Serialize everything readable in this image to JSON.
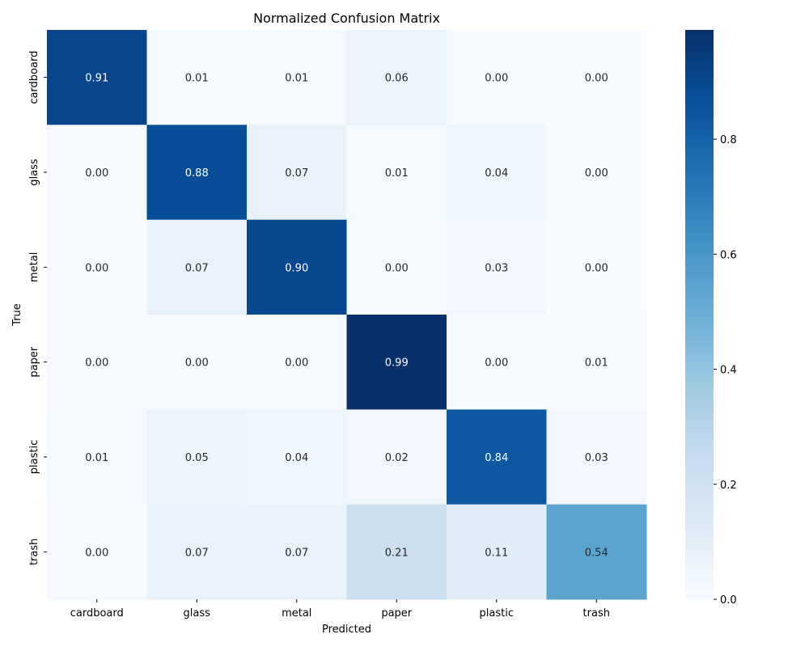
{
  "chart_data": {
    "type": "heatmap",
    "title": "Normalized Confusion Matrix",
    "xlabel": "Predicted",
    "ylabel": "True",
    "x_categories": [
      "cardboard",
      "glass",
      "metal",
      "paper",
      "plastic",
      "trash"
    ],
    "y_categories": [
      "cardboard",
      "glass",
      "metal",
      "paper",
      "plastic",
      "trash"
    ],
    "values": [
      [
        0.91,
        0.01,
        0.01,
        0.06,
        0.0,
        0.0
      ],
      [
        0.0,
        0.88,
        0.07,
        0.01,
        0.04,
        0.0
      ],
      [
        0.0,
        0.07,
        0.9,
        0.0,
        0.03,
        0.0
      ],
      [
        0.0,
        0.0,
        0.0,
        0.99,
        0.0,
        0.01
      ],
      [
        0.01,
        0.05,
        0.04,
        0.02,
        0.84,
        0.03
      ],
      [
        0.0,
        0.07,
        0.07,
        0.21,
        0.11,
        0.54
      ]
    ],
    "value_format": "0.00",
    "colormap": "Blues",
    "colorbar": {
      "range": [
        0.0,
        0.99
      ],
      "ticks": [
        0.0,
        0.2,
        0.4,
        0.6,
        0.8
      ],
      "tick_labels": [
        "0.0",
        "0.2",
        "0.4",
        "0.6",
        "0.8"
      ]
    },
    "grid": false
  }
}
